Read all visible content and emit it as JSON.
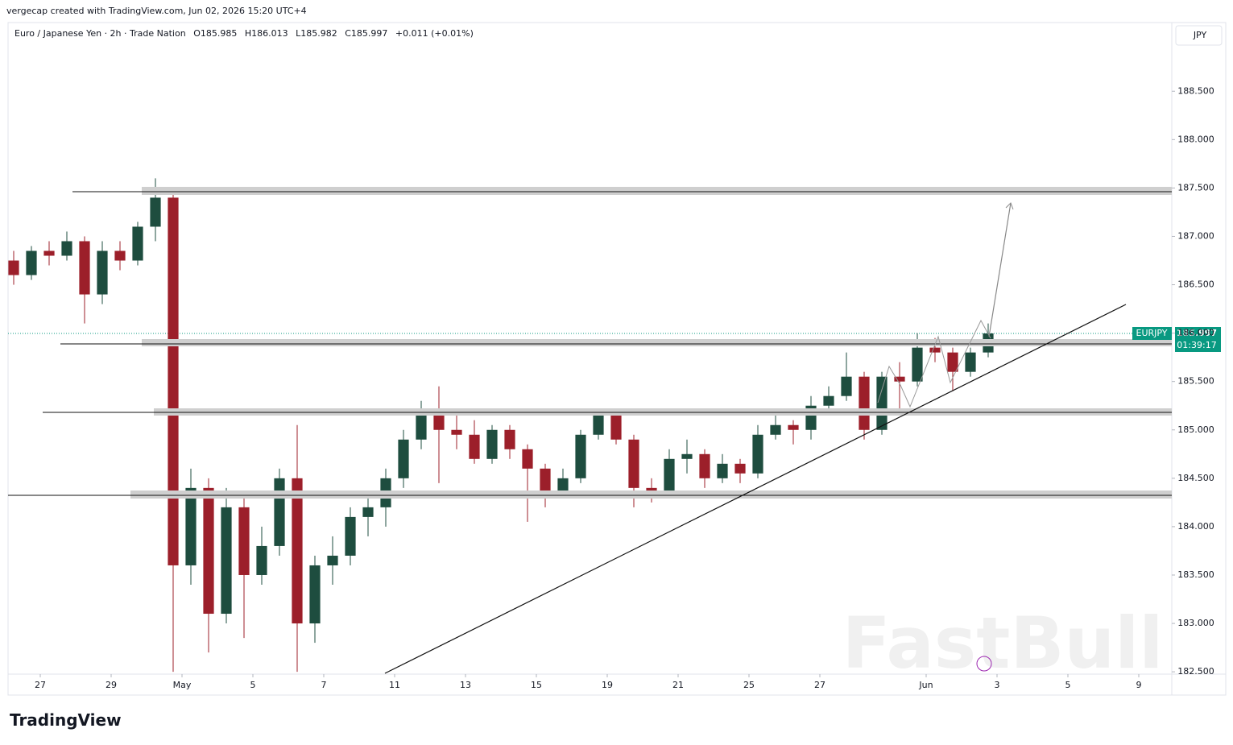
{
  "header": {
    "attribution": "vergecap created with TradingView.com, Jun 02, 2026 15:20 UTC+4",
    "symbol": "Euro / Japanese Yen · 2h · Trade Nation",
    "ohlc": [
      "O185.985",
      "H186.013",
      "L185.982",
      "C185.997"
    ],
    "change": "+0.011 (+0.01%)"
  },
  "currency": "JPY",
  "watermark": "FastBull",
  "footer_logo": "TradingView",
  "price_label": {
    "symbol": "EURJPY",
    "price": "185.997",
    "countdown": "01:39:17"
  },
  "chart_data": {
    "type": "candlestick",
    "up_color": "#1e4d3f",
    "down_color": "#9c1f2a",
    "last_color": "#089981",
    "last_price": 185.997,
    "x": [
      -0.75,
      -0.25,
      0.25,
      0.75,
      1.25,
      1.75,
      2.25,
      2.75,
      3.25,
      3.75,
      4.25,
      4.75,
      5.25,
      5.75,
      6.25,
      6.75,
      7.25,
      7.75,
      8.25,
      8.75,
      9.25,
      9.75,
      10.25,
      10.75,
      11.25,
      11.75,
      12.25,
      12.75,
      13.25,
      13.75,
      14.25,
      14.75,
      15.25,
      15.75,
      16.25,
      16.75,
      17.25,
      17.75,
      18.25,
      18.75,
      19.25,
      19.75,
      20.25,
      20.75,
      21.25,
      21.75,
      22.25,
      22.75,
      23.25,
      23.75,
      24.25,
      24.75,
      25.25,
      25.75,
      26.25,
      26.75
    ],
    "open": [
      186.75,
      186.6,
      186.85,
      186.8,
      186.95,
      186.4,
      186.85,
      186.75,
      187.1,
      187.4,
      183.6,
      184.4,
      183.1,
      184.2,
      183.5,
      183.8,
      184.5,
      183.0,
      183.6,
      183.7,
      184.1,
      184.2,
      184.5,
      184.9,
      185.2,
      185.0,
      184.95,
      184.7,
      185.0,
      184.8,
      184.6,
      184.35,
      184.5,
      184.95,
      185.15,
      184.9,
      184.4,
      184.35,
      184.7,
      184.75,
      184.5,
      184.65,
      184.55,
      184.95,
      185.05,
      185.0,
      185.25,
      185.35,
      185.55,
      185.0,
      185.55,
      185.5,
      185.85,
      185.8,
      185.6,
      185.8
    ],
    "high": [
      186.85,
      186.9,
      186.95,
      187.05,
      187.0,
      186.95,
      186.95,
      187.15,
      187.6,
      187.5,
      184.6,
      184.5,
      184.4,
      184.3,
      184.0,
      184.6,
      185.05,
      183.7,
      183.9,
      184.2,
      184.3,
      184.6,
      185.0,
      185.3,
      185.45,
      185.15,
      185.1,
      185.05,
      185.05,
      184.85,
      184.65,
      184.6,
      185.0,
      185.2,
      185.2,
      184.95,
      184.5,
      184.8,
      184.9,
      184.8,
      184.75,
      184.7,
      185.05,
      185.15,
      185.1,
      185.35,
      185.45,
      185.8,
      185.6,
      185.6,
      185.7,
      186.0,
      185.95,
      185.85,
      185.85,
      186.1
    ],
    "low": [
      186.5,
      186.55,
      186.7,
      186.75,
      186.1,
      186.3,
      186.65,
      186.7,
      186.95,
      182.5,
      183.4,
      182.7,
      183.0,
      182.85,
      183.4,
      183.7,
      182.5,
      182.8,
      183.4,
      183.6,
      183.9,
      184.0,
      184.4,
      184.8,
      184.45,
      184.8,
      184.65,
      184.65,
      184.7,
      184.05,
      184.2,
      184.3,
      184.45,
      184.9,
      184.85,
      184.2,
      184.25,
      184.3,
      184.55,
      184.4,
      184.45,
      184.45,
      184.5,
      184.9,
      184.85,
      184.9,
      185.15,
      185.3,
      184.9,
      184.95,
      185.2,
      185.45,
      185.7,
      185.4,
      185.55,
      185.75
    ],
    "close": [
      186.6,
      186.85,
      186.8,
      186.95,
      186.4,
      186.85,
      186.75,
      187.1,
      187.4,
      183.6,
      184.4,
      183.1,
      184.2,
      183.5,
      183.8,
      184.5,
      183.0,
      183.6,
      183.7,
      184.1,
      184.2,
      184.5,
      184.9,
      185.2,
      185.0,
      184.95,
      184.7,
      185.0,
      184.8,
      184.6,
      184.35,
      184.5,
      184.95,
      185.15,
      184.9,
      184.4,
      184.35,
      184.7,
      184.75,
      184.5,
      184.65,
      184.55,
      184.95,
      185.05,
      185.0,
      185.25,
      185.35,
      185.55,
      185.0,
      185.55,
      185.5,
      185.85,
      185.8,
      185.6,
      185.8,
      185.997
    ],
    "xlim": [
      -0.9091,
      31.9318
    ],
    "xticks": [
      {
        "value": 0,
        "label": "27"
      },
      {
        "value": 2,
        "label": "29"
      },
      {
        "value": 4,
        "label": "May"
      },
      {
        "value": 6,
        "label": "5"
      },
      {
        "value": 8,
        "label": "7"
      },
      {
        "value": 10,
        "label": "11"
      },
      {
        "value": 12,
        "label": "13"
      },
      {
        "value": 14,
        "label": "15"
      },
      {
        "value": 16,
        "label": "19"
      },
      {
        "value": 18,
        "label": "21"
      },
      {
        "value": 20,
        "label": "25"
      },
      {
        "value": 22,
        "label": "27"
      },
      {
        "value": 25,
        "label": "Jun"
      },
      {
        "value": 27,
        "label": "3"
      },
      {
        "value": 29,
        "label": "5"
      },
      {
        "value": 31,
        "label": "9"
      }
    ],
    "ylim": [
      182.476,
      189.193
    ],
    "yticks": [
      {
        "value": 182.5,
        "label": "182.500"
      },
      {
        "value": 183,
        "label": "183.000"
      },
      {
        "value": 183.5,
        "label": "183.500"
      },
      {
        "value": 184,
        "label": "184.000"
      },
      {
        "value": 184.5,
        "label": "184.500"
      },
      {
        "value": 185,
        "label": "185.000"
      },
      {
        "value": 185.5,
        "label": "185.500"
      },
      {
        "value": 186,
        "label": "186.000"
      },
      {
        "value": 186.5,
        "label": "186.500"
      },
      {
        "value": 187,
        "label": "187.000"
      },
      {
        "value": 187.5,
        "label": "187.500"
      },
      {
        "value": 188,
        "label": "188.000"
      },
      {
        "value": 188.5,
        "label": "188.500"
      }
    ]
  }
}
